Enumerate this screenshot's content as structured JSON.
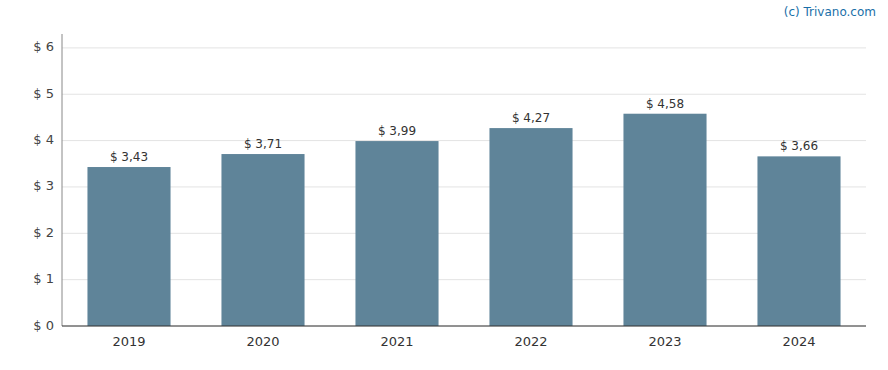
{
  "chart_data": {
    "type": "bar",
    "categories": [
      "2019",
      "2020",
      "2021",
      "2022",
      "2023",
      "2024"
    ],
    "values": [
      3.43,
      3.71,
      3.99,
      4.27,
      4.58,
      3.66
    ],
    "value_labels": [
      "$ 3,43",
      "$ 3,71",
      "$ 3,99",
      "$ 4,27",
      "$ 4,58",
      "$ 3,66"
    ],
    "color": "#5f8499",
    "ylim": [
      0,
      6.3
    ],
    "yticks": [
      {
        "value": 0,
        "label": "$ 0"
      },
      {
        "value": 1,
        "label": "$ 1"
      },
      {
        "value": 2,
        "label": "$ 2"
      },
      {
        "value": 3,
        "label": "$ 3"
      },
      {
        "value": 4,
        "label": "$ 4"
      },
      {
        "value": 5,
        "label": "$ 5"
      },
      {
        "value": 6,
        "label": "$ 6"
      }
    ],
    "grid": true,
    "data_labels": true,
    "annotations": [
      "(c) Trivano.com"
    ]
  }
}
